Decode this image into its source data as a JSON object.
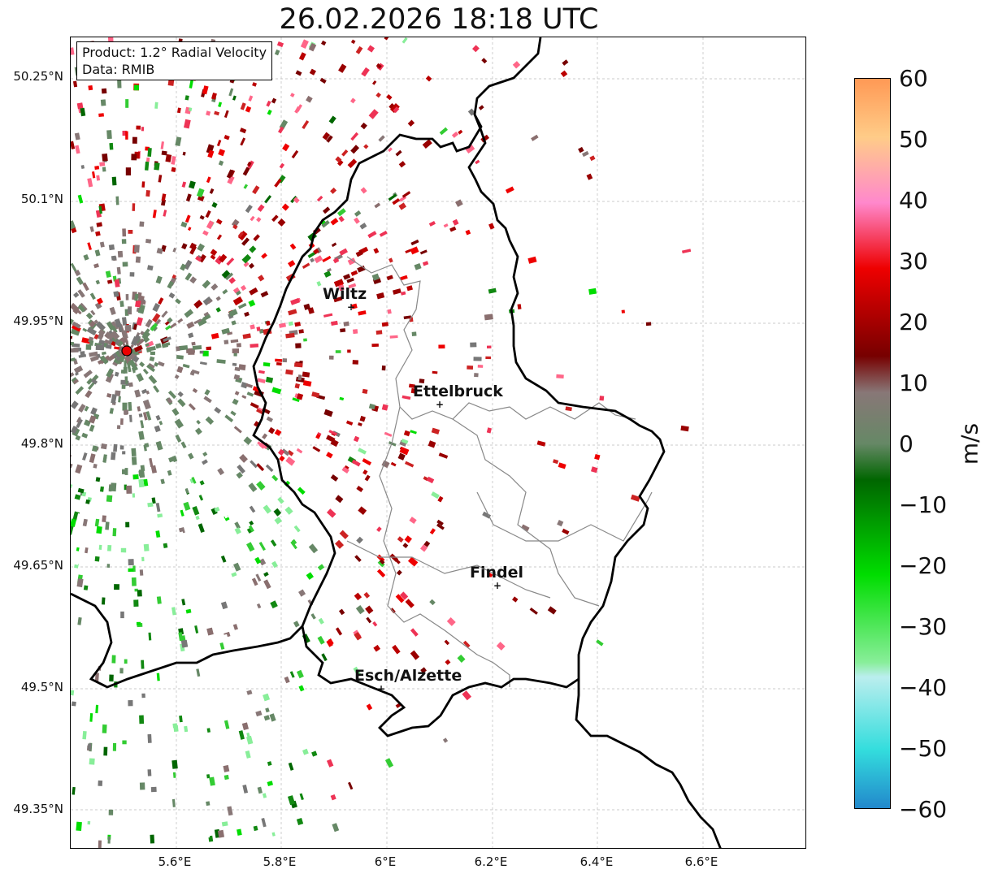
{
  "title": "26.02.2026 18:18 UTC",
  "info": {
    "product": "Product: 1.2° Radial Velocity",
    "source": "Data: RMIB"
  },
  "axes": {
    "lat_labels": [
      "50.25°N",
      "50.1°N",
      "49.95°N",
      "49.8°N",
      "49.65°N",
      "49.5°N",
      "49.35°N"
    ],
    "lon_labels": [
      "5.6°E",
      "5.8°E",
      "6°E",
      "6.2°E",
      "6.4°E",
      "6.6°E"
    ]
  },
  "cities": [
    {
      "name": "Wiltz"
    },
    {
      "name": "Ettelbruck"
    },
    {
      "name": "Findel"
    },
    {
      "name": "Esch/Alzette"
    }
  ],
  "colorbar": {
    "unit": "m/s",
    "ticks": [
      "60",
      "50",
      "40",
      "30",
      "20",
      "10",
      "0",
      "−10",
      "−20",
      "−30",
      "−40",
      "−50",
      "−60"
    ],
    "colors": {
      "top": "#ff9955",
      "orange": "#ffcc88",
      "pink": "#ff88cc",
      "red": "#ee0000",
      "darkred": "#770000",
      "grey": "#887777",
      "greygreen": "#668866",
      "darkgreen": "#006600",
      "green": "#00dd00",
      "lightgreen": "#88ee99",
      "lightcyan": "#bbeeee",
      "cyan": "#33dddd",
      "blue": "#2288cc"
    }
  },
  "radar_site": {
    "color": "#ee0000"
  }
}
